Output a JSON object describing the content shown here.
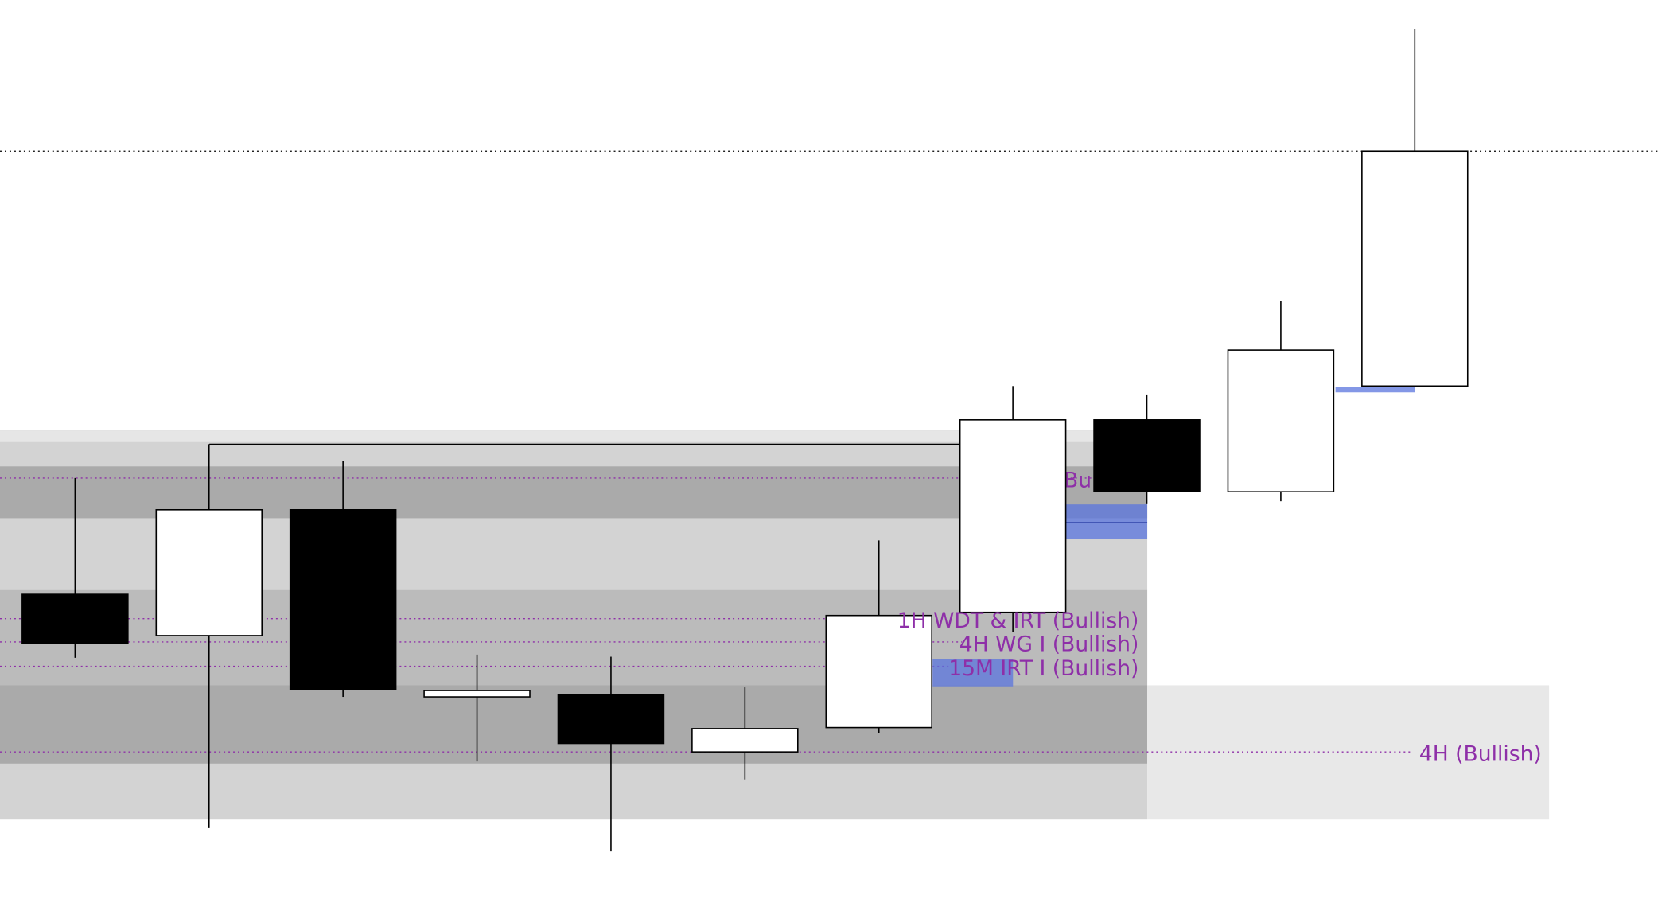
{
  "chart_data": {
    "type": "candlestick",
    "ylim": [
      0,
      868
    ],
    "candles": [
      {
        "open": 306,
        "high": 416,
        "low": 246,
        "close": 260
      },
      {
        "open": 267,
        "high": 448,
        "low": 85,
        "close": 386
      },
      {
        "open": 386,
        "high": 432,
        "low": 209,
        "close": 216
      },
      {
        "open": 209,
        "high": 249,
        "low": 148,
        "close": 215
      },
      {
        "open": 211,
        "high": 247,
        "low": 63,
        "close": 165
      },
      {
        "open": 157,
        "high": 218,
        "low": 131,
        "close": 179
      },
      {
        "open": 180,
        "high": 357,
        "low": 175,
        "close": 286
      },
      {
        "open": 289,
        "high": 503,
        "low": 270,
        "close": 471
      },
      {
        "open": 471,
        "high": 495,
        "low": 392,
        "close": 403
      },
      {
        "open": 403,
        "high": 583,
        "low": 394,
        "close": 537
      },
      {
        "open": 503,
        "high": 841,
        "low": 503,
        "close": 725
      }
    ],
    "up_color": "#ffffff",
    "down_color": "#000000",
    "annotations": [
      "Bullish",
      "1H WDT & IRT (Bullish)",
      "4H WG I (Bullish)",
      "15M IRT I (Bullish)",
      "4H (Bullish)"
    ]
  }
}
